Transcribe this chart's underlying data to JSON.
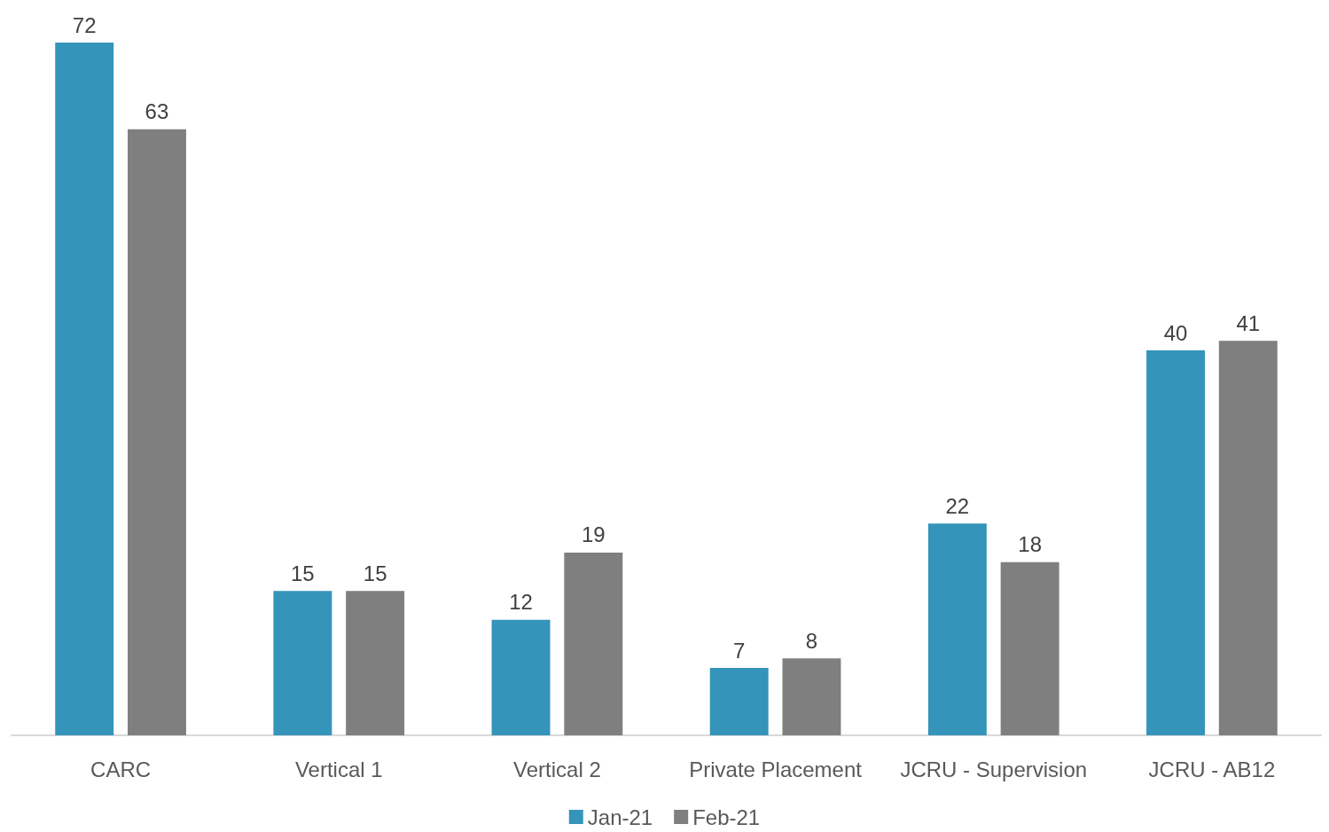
{
  "chart_data": {
    "type": "bar",
    "categories": [
      "CARC",
      "Vertical 1",
      "Vertical 2",
      "Private Placement",
      "JCRU - Supervision",
      "JCRU - AB12"
    ],
    "series": [
      {
        "name": "Jan-21",
        "color": "#3494ba",
        "values": [
          72,
          15,
          12,
          7,
          22,
          40
        ]
      },
      {
        "name": "Feb-21",
        "color": "#7f7f7f",
        "values": [
          63,
          15,
          19,
          8,
          18,
          41
        ]
      }
    ],
    "data_labels": true,
    "legend": "bottom"
  }
}
